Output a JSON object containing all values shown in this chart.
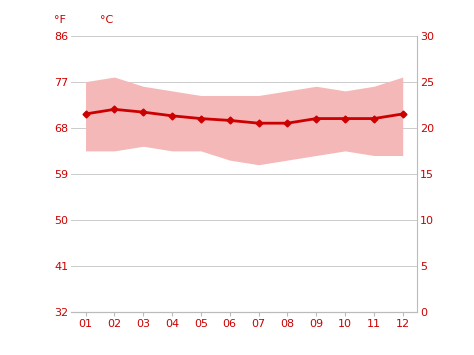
{
  "months": [
    1,
    2,
    3,
    4,
    5,
    6,
    7,
    8,
    9,
    10,
    11,
    12
  ],
  "month_labels": [
    "01",
    "02",
    "03",
    "04",
    "05",
    "06",
    "07",
    "08",
    "09",
    "10",
    "11",
    "12"
  ],
  "mean_temp_c": [
    21.5,
    22.0,
    21.7,
    21.3,
    21.0,
    20.8,
    20.5,
    20.5,
    21.0,
    21.0,
    21.0,
    21.5
  ],
  "max_temp_c": [
    25.0,
    25.5,
    24.5,
    24.0,
    23.5,
    23.5,
    23.5,
    24.0,
    24.5,
    24.0,
    24.5,
    25.5
  ],
  "min_temp_c": [
    17.5,
    17.5,
    18.0,
    17.5,
    17.5,
    16.5,
    16.0,
    16.5,
    17.0,
    17.5,
    17.0,
    17.0
  ],
  "y_ticks_c": [
    0,
    5,
    10,
    15,
    20,
    25,
    30
  ],
  "y_ticks_f": [
    32,
    41,
    50,
    59,
    68,
    77,
    86
  ],
  "ylim_c": [
    0,
    30
  ],
  "band_color": "#f5b8b8",
  "line_color": "#cc0000",
  "marker_color": "#cc0000",
  "bg_color": "#ffffff",
  "grid_color": "#cccccc",
  "spine_color": "#bbbbbb",
  "tick_label_color": "#cc0000",
  "label_f": "°F",
  "label_c": "°C",
  "label_fontsize": 8,
  "tick_fontsize": 8
}
